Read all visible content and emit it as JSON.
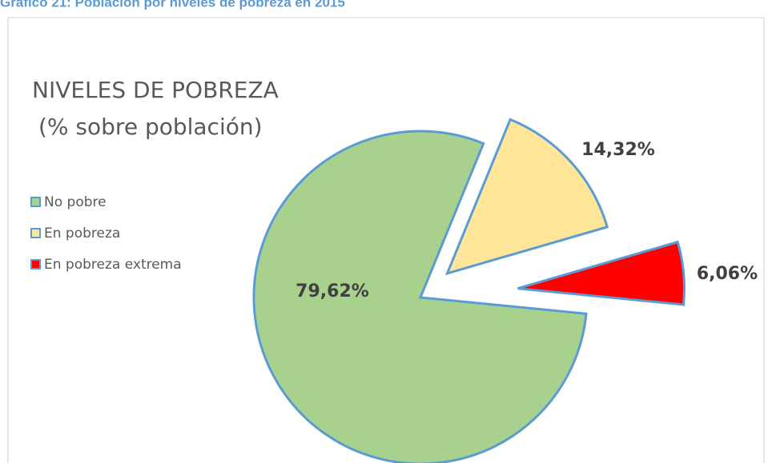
{
  "header": "Gráfico 21: Población por niveles de pobreza en 2015",
  "chart_data": {
    "type": "pie",
    "title": "NIVELES DE POBREZA",
    "subtitle": "(% sobre población)",
    "categories": [
      "No pobre",
      "En pobreza",
      "En pobreza extrema"
    ],
    "values": [
      79.62,
      14.32,
      6.06
    ],
    "value_labels": [
      "79,62%",
      "14,32%",
      "6,06%"
    ],
    "colors": [
      "#a9d18e",
      "#ffe699",
      "#ff0000"
    ],
    "legend": "left"
  }
}
